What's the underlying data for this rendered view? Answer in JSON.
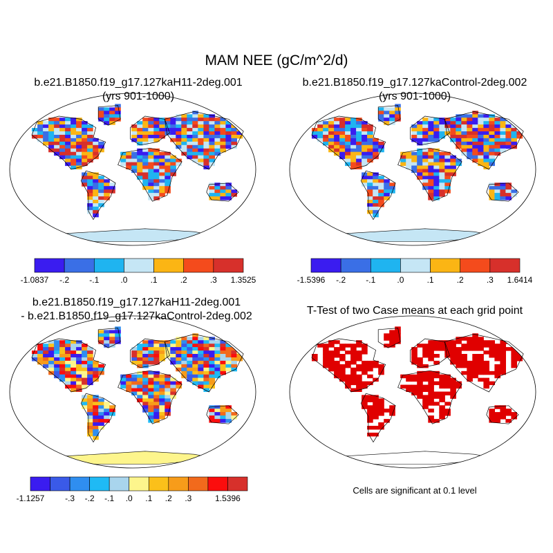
{
  "title": "MAM NEE (gC/m^2/d)",
  "panels": [
    {
      "title_line1": "b.e21.B1850.f19_g17.127kaH11-2deg.001",
      "title_line2": "(yrs 901-1000)",
      "colorbar": {
        "colors": [
          "#3a1cf0",
          "#3a6fe6",
          "#1fb4f0",
          "#c5e6f5",
          "#fbb514",
          "#f44b1c",
          "#d7302b"
        ],
        "labels": [
          "-1.0837",
          "-.2",
          "-.1",
          ".0",
          ".1",
          ".2",
          ".3",
          "1.3525"
        ]
      }
    },
    {
      "title_line1": "b.e21.B1850.f19_g17.127kaControl-2deg.002",
      "title_line2": "(yrs 901-1000)",
      "colorbar": {
        "colors": [
          "#3a1cf0",
          "#3a6fe6",
          "#1fb4f0",
          "#c5e6f5",
          "#fbb514",
          "#f44b1c",
          "#d7302b"
        ],
        "labels": [
          "-1.5396",
          "-.2",
          "-.1",
          ".0",
          ".1",
          ".2",
          ".3",
          "1.6414"
        ]
      }
    },
    {
      "title_line1": "b.e21.B1850.f19_g17.127kaH11-2deg.001",
      "title_line2": "- b.e21.B1850.f19_g17.127kaControl-2deg.002",
      "colorbar": {
        "colors": [
          "#3a1cf0",
          "#3a5ae8",
          "#2f8ef0",
          "#1fbaf5",
          "#a9d5ed",
          "#fdf58c",
          "#fbc01a",
          "#f79c1a",
          "#f26a1c",
          "#fb0d0d",
          "#d7302b"
        ],
        "labels": [
          "-1.1257",
          "",
          "-.3",
          "-.2",
          "-.1",
          ".0",
          ".1",
          ".2",
          ".3",
          "",
          "1.5396"
        ]
      }
    },
    {
      "title_line1": "T-Test of two Case means at each grid point",
      "note": "Cells are significant at 0.1 level",
      "sig_color": "#e00000"
    }
  ],
  "colors": {
    "land_outline": "#000000",
    "antarctica_mean": "#c5e6f5",
    "antarctica_diff": "#fdf58c"
  }
}
